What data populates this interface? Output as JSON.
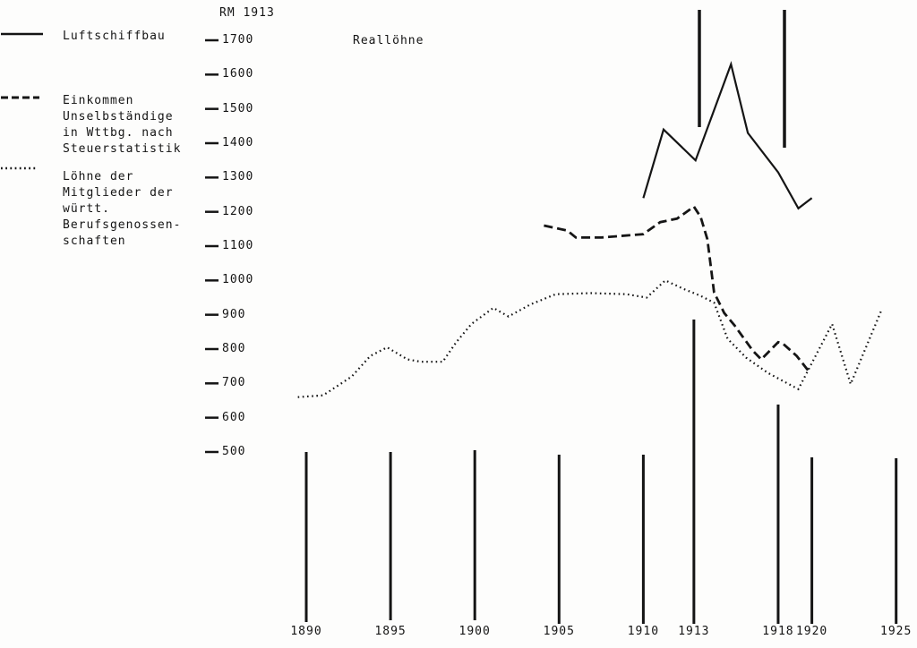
{
  "title": "Reallöhne",
  "y_axis_unit": "RM 1913",
  "legend": {
    "items": [
      {
        "style": "solid",
        "lines": [
          "Luftschiffbau"
        ]
      },
      {
        "style": "dashed",
        "lines": [
          "Einkommen",
          "Unselbständige",
          "in Wttbg. nach",
          "Steuerstatistik"
        ]
      },
      {
        "style": "dotted",
        "lines": [
          "Löhne der",
          "Mitglieder der",
          "württ.",
          "Berufsgenossen-",
          "schaften"
        ]
      }
    ]
  },
  "chart_data": {
    "type": "line",
    "title": "Reallöhne",
    "ylabel": "RM 1913",
    "ylim": [
      500,
      1700
    ],
    "xlim": [
      1888,
      1926
    ],
    "grid": "vertical tick lines only, at labeled years; two tall reference lines above the plot near 1913 and 1918",
    "legend_position": "top-left",
    "y_ticks": [
      1700,
      1600,
      1500,
      1400,
      1300,
      1200,
      1100,
      1000,
      900,
      800,
      700,
      600,
      500
    ],
    "x_ticks": [
      {
        "label": "1890",
        "year": 1890
      },
      {
        "label": "1895",
        "year": 1895
      },
      {
        "label": "1900",
        "year": 1900
      },
      {
        "label": "1905",
        "year": 1905
      },
      {
        "label": "1910",
        "year": 1910
      },
      {
        "label": "1913",
        "year": 1913
      },
      {
        "label": "1918",
        "year": 1918
      },
      {
        "label": "1920",
        "year": 1920
      },
      {
        "label": "1925",
        "year": 1925
      }
    ],
    "series": [
      {
        "name": "Luftschiffbau",
        "style": "solid",
        "points": [
          [
            1910.0,
            1240
          ],
          [
            1911.2,
            1440
          ],
          [
            1913.1,
            1350
          ],
          [
            1915.2,
            1630
          ],
          [
            1916.2,
            1430
          ],
          [
            1918.0,
            1315
          ],
          [
            1919.2,
            1210
          ],
          [
            1920.0,
            1240
          ]
        ]
      },
      {
        "name": "Einkommen Unselbständige in Wttbg. nach Steuerstatistik",
        "style": "dashed",
        "points": [
          [
            1904.1,
            1160
          ],
          [
            1905.5,
            1145
          ],
          [
            1906.0,
            1125
          ],
          [
            1907.5,
            1125
          ],
          [
            1910.0,
            1135
          ],
          [
            1911.0,
            1170
          ],
          [
            1912.0,
            1180
          ],
          [
            1913.0,
            1215
          ],
          [
            1913.4,
            1185
          ],
          [
            1913.8,
            1120
          ],
          [
            1914.2,
            965
          ],
          [
            1914.8,
            905
          ],
          [
            1915.4,
            870
          ],
          [
            1916.5,
            795
          ],
          [
            1917.0,
            770
          ],
          [
            1918.0,
            820
          ],
          [
            1918.3,
            815
          ],
          [
            1919.1,
            780
          ],
          [
            1919.9,
            730
          ]
        ]
      },
      {
        "name": "Löhne der Mitglieder der württ. Berufsgenossenschaften",
        "style": "dotted",
        "points": [
          [
            1889.5,
            660
          ],
          [
            1891.0,
            665
          ],
          [
            1892.7,
            720
          ],
          [
            1893.8,
            780
          ],
          [
            1894.8,
            805
          ],
          [
            1896.0,
            770
          ],
          [
            1896.8,
            763
          ],
          [
            1898.1,
            763
          ],
          [
            1898.9,
            820
          ],
          [
            1899.8,
            873
          ],
          [
            1901.1,
            920
          ],
          [
            1902.0,
            895
          ],
          [
            1903.3,
            930
          ],
          [
            1904.2,
            948
          ],
          [
            1904.8,
            960
          ],
          [
            1906.9,
            963
          ],
          [
            1909.0,
            960
          ],
          [
            1910.2,
            950
          ],
          [
            1911.3,
            1000
          ],
          [
            1912.4,
            975
          ],
          [
            1913.4,
            955
          ],
          [
            1914.2,
            935
          ],
          [
            1915.0,
            830
          ],
          [
            1916.1,
            775
          ],
          [
            1917.4,
            730
          ],
          [
            1919.2,
            683
          ],
          [
            1921.2,
            873
          ],
          [
            1922.3,
            698
          ],
          [
            1924.1,
            910
          ]
        ]
      }
    ],
    "ink_color": "#151515"
  }
}
